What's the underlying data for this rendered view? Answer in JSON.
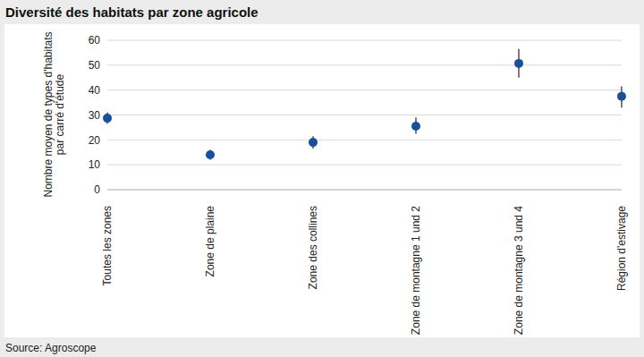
{
  "chart_data": {
    "type": "scatter",
    "title": "Diversité des habitats par zone agricole",
    "ylabel": "Nombre moyen de types d'habitats par carré d'étude",
    "source": "Source: Agroscope",
    "categories": [
      "Toutes les zones",
      "Zone de plaine",
      "Zone des collines",
      "Zone de montagne 1 und 2",
      "Zone de montagne 3 und 4",
      "Région d'estivage"
    ],
    "values": [
      28.7,
      14,
      19,
      25.5,
      50.7,
      37.5
    ],
    "error": [
      [
        2.2,
        2.3
      ],
      [
        2,
        2
      ],
      [
        2.5,
        2.5
      ],
      [
        3,
        3.5
      ],
      [
        5.7,
        5.8
      ],
      [
        4.5,
        4
      ]
    ],
    "color": "#1a4f9c",
    "ylim": [
      0,
      60
    ],
    "yticks": [
      0,
      10,
      20,
      30,
      40,
      50,
      60
    ],
    "grid": true,
    "marker": "circle"
  }
}
